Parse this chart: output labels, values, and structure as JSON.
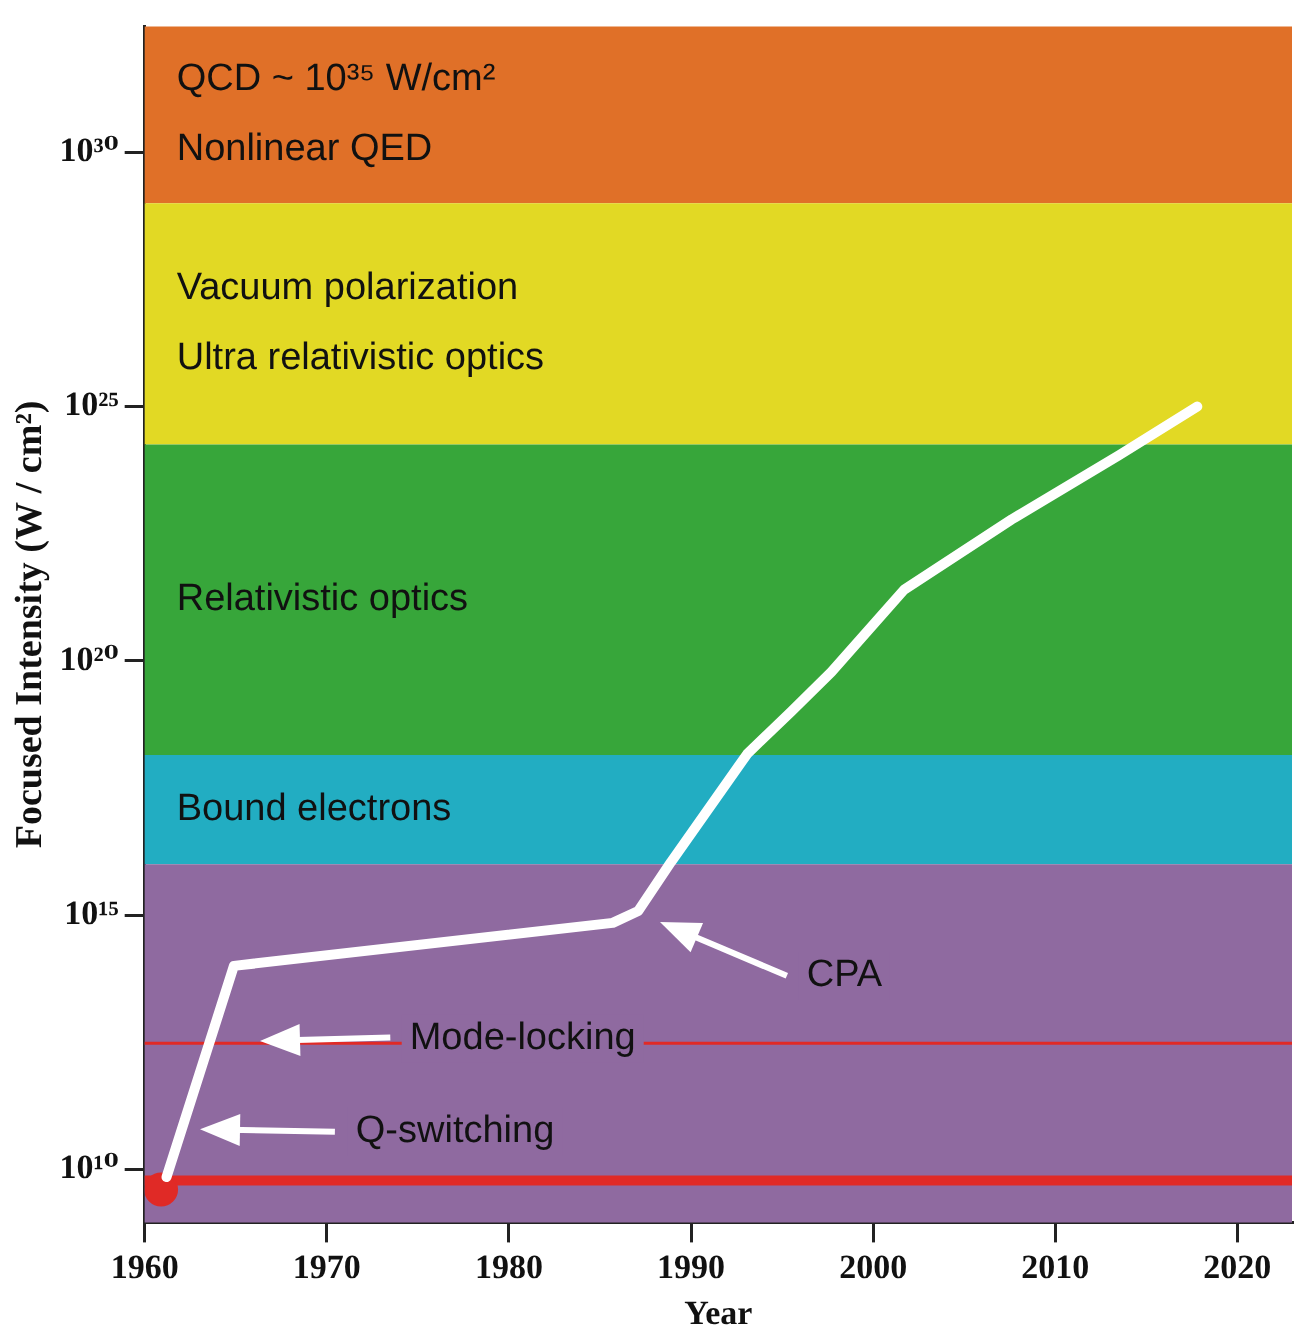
{
  "chart_data": {
    "type": "line",
    "xlabel": "Year",
    "ylabel": "Focused Intensity (W / cm²)",
    "log": "y",
    "xlim": [
      1960,
      2023
    ],
    "ylim": [
      900000000.0,
      3e+32
    ],
    "xticks": [
      1960,
      1970,
      1980,
      1990,
      2000,
      2010,
      2020
    ],
    "yticks": [
      {
        "value": 10000000000.0,
        "label": "10¹⁰"
      },
      {
        "value": 1000000000000000.0,
        "label": "10¹⁵"
      },
      {
        "value": 1e+20,
        "label": "10²⁰"
      },
      {
        "value": 1e+25,
        "label": "10²⁵"
      },
      {
        "value": 1e+30,
        "label": "10³⁰"
      }
    ],
    "series": [
      {
        "color": "#ffffff",
        "marker": "none",
        "x": [
          1961.2,
          1964.9,
          1985.7,
          1987.1,
          1988.9,
          1993.1,
          1995.5,
          1997.7,
          2001.7,
          2007.6,
          2013.5,
          2017.8
        ],
        "values": [
          7000000000.0,
          100000000000000.0,
          700000000000000.0,
          1200000000000000.0,
          1.1e+16,
          1.5e+18,
          1e+19,
          6e+19,
          2.5e+21,
          6e+22,
          1.1e+24,
          1e+25
        ]
      },
      {
        "type": "scatter",
        "color": "#e02a26",
        "marker": "circle",
        "x": [
          1960.9
        ],
        "values": [
          4000000000.0
        ]
      }
    ],
    "bands": [
      {
        "axis": "y",
        "from": 1e+29,
        "to": 3e+32,
        "label": "QCD ~ 10³⁵ W/cm²\nNonlinear QED",
        "color": "#e07028"
      },
      {
        "axis": "y",
        "from": 1.8e+24,
        "to": 1e+29,
        "label": "Vacuum polarization\nUltra relativistic optics",
        "color": "#e2d924"
      },
      {
        "axis": "y",
        "from": 1.4e+18,
        "to": 1.8e+24,
        "label": "Relativistic optics",
        "color": "#37a63a"
      },
      {
        "axis": "y",
        "from": 1e+16,
        "to": 1.4e+18,
        "label": "Bound electrons",
        "color": "#22adc2"
      },
      {
        "axis": "y",
        "from": 900000000.0,
        "to": 1e+16,
        "label": null,
        "color": "#8f6aa0"
      }
    ],
    "ref_lines": [
      {
        "axis": "y",
        "value": 6000000000.0,
        "color": "#e02a26"
      },
      {
        "axis": "y",
        "value": 3000000000000.0,
        "color": "#e02a26"
      }
    ],
    "annotations": [
      "CPA",
      "Mode-locking",
      "Q-switching"
    ]
  }
}
